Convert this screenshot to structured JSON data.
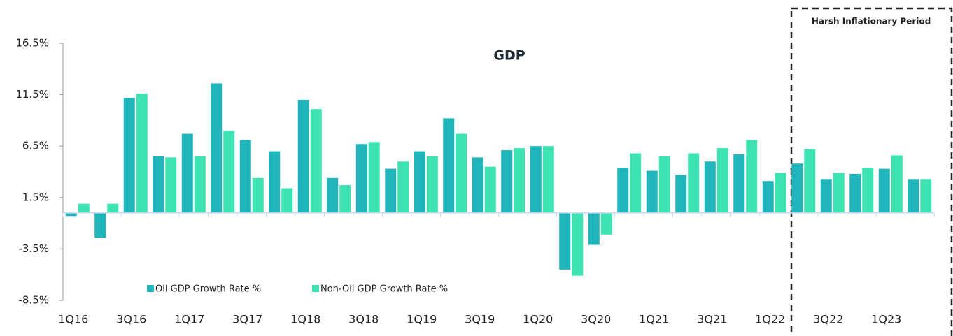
{
  "chart_data": {
    "type": "bar",
    "title": "GDP",
    "annotation": "Harsh Inflationary Period",
    "categories": [
      "1Q16",
      null,
      "3Q16",
      null,
      "1Q17",
      null,
      "3Q17",
      null,
      "1Q18",
      null,
      "3Q18",
      null,
      "1Q19",
      null,
      "3Q19",
      null,
      "1Q20",
      null,
      "3Q20",
      null,
      "1Q21",
      null,
      "3Q21",
      null,
      "1Q22",
      null,
      "3Q22",
      null,
      "1Q23",
      null
    ],
    "series": [
      {
        "name": "Oil GDP Growth Rate %",
        "color": "#1fb5bb",
        "values": [
          -0.3,
          -2.4,
          11.2,
          5.5,
          7.7,
          12.6,
          7.1,
          6.0,
          11.0,
          3.4,
          6.7,
          4.3,
          6.0,
          9.2,
          5.4,
          6.1,
          6.5,
          -5.5,
          -3.1,
          4.4,
          4.1,
          3.7,
          5.0,
          5.7,
          3.1,
          4.8,
          3.3,
          3.8,
          4.3,
          3.3
        ]
      },
      {
        "name": "Non-Oil GDP Growth Rate %",
        "color": "#3ee3b2",
        "values": [
          0.9,
          0.9,
          11.6,
          5.4,
          5.5,
          8.0,
          3.4,
          2.4,
          10.1,
          2.7,
          6.9,
          5.0,
          5.5,
          7.7,
          4.5,
          6.3,
          6.5,
          -6.1,
          -2.1,
          5.8,
          5.5,
          5.8,
          6.3,
          7.1,
          3.9,
          6.2,
          3.9,
          4.4,
          5.6,
          3.3
        ]
      }
    ],
    "ylim": [
      -8.5,
      16.5
    ],
    "yticks": [
      {
        "value": 16.5,
        "label": "16.5%"
      },
      {
        "value": 11.5,
        "label": "11.5%"
      },
      {
        "value": 6.5,
        "label": "6.5%"
      },
      {
        "value": 1.5,
        "label": "1.5%"
      },
      {
        "value": -3.5,
        "label": "-3.5%"
      },
      {
        "value": -8.5,
        "label": "-8.5%"
      }
    ],
    "grid": false
  }
}
